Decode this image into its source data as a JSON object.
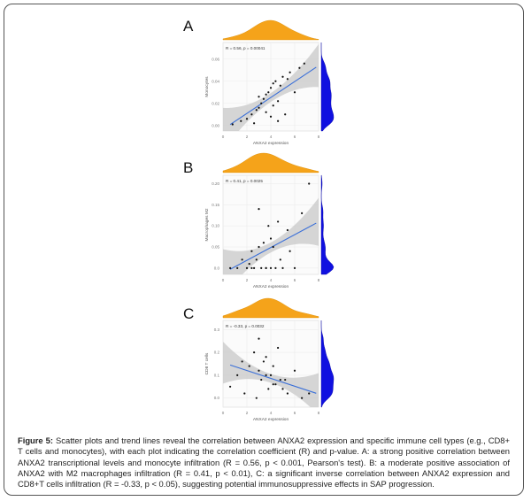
{
  "figure": {
    "label": "Figure 5:",
    "caption": "Scatter plots and trend lines reveal the correlation between ANXA2 expression and specific immune cell types (e.g., CD8+ T cells and monocytes), with each plot indicating the correlation coefficient (R) and p-value. A: a strong positive correlation between ANXA2 transcriptional levels and monocyte infiltration (R = 0.56, p < 0.001, Pearson's test). B: a moderate positive association of ANXA2 with M2 macrophages infiltration (R = 0.41, p < 0.01), C: a significant inverse correlation between ANXA2 expression and CD8+T cells infiltration (R = -0.33, p < 0.05), suggesting potential immunosuppressive effects in SAP progression."
  },
  "colors": {
    "top_density": "#f5a31a",
    "side_density": "#1010e0",
    "trend": "#3a6fd8",
    "ci_band": "#c8c8c8",
    "points": "#111111"
  },
  "chart_data": [
    {
      "type": "scatter",
      "panel_label": "A",
      "annotation": "R = 0.56, p = 0.00041",
      "xlabel": "ANXA2 expression",
      "ylabel": "Monocytes",
      "xticks": [
        "0",
        "2",
        "4",
        "6",
        "8"
      ],
      "yticks": [
        "0.00",
        "0.02",
        "0.04",
        "0.06"
      ],
      "xlim": [
        0,
        8
      ],
      "ylim": [
        -0.005,
        0.075
      ],
      "x": [
        0.8,
        1.5,
        2.0,
        2.4,
        2.8,
        3.0,
        3.2,
        3.4,
        3.6,
        3.6,
        3.8,
        4.0,
        4.0,
        4.2,
        4.2,
        4.4,
        4.6,
        4.8,
        5.0,
        5.2,
        5.4,
        5.6,
        6.0,
        6.4,
        6.8,
        3.0,
        2.6,
        4.6
      ],
      "y": [
        0.001,
        0.004,
        0.006,
        0.01,
        0.014,
        0.016,
        0.02,
        0.024,
        0.028,
        0.012,
        0.03,
        0.034,
        0.008,
        0.038,
        0.018,
        0.04,
        0.022,
        0.036,
        0.044,
        0.01,
        0.042,
        0.048,
        0.03,
        0.052,
        0.056,
        0.026,
        0.002,
        0.004
      ],
      "trend": {
        "slope": 0.0072,
        "intercept": -0.0035
      }
    },
    {
      "type": "scatter",
      "panel_label": "B",
      "annotation": "R = 0.41, p = 0.0025",
      "xlabel": "ANXA2 expression",
      "ylabel": "Macrophages M2",
      "xticks": [
        "0",
        "2",
        "4",
        "6",
        "8"
      ],
      "yticks": [
        "0.0",
        "0.05",
        "0.10",
        "0.15",
        "0.20"
      ],
      "xlim": [
        0,
        8
      ],
      "ylim": [
        -0.015,
        0.22
      ],
      "x": [
        0.6,
        1.2,
        1.6,
        2.0,
        2.2,
        2.4,
        2.6,
        2.8,
        3.0,
        3.2,
        3.4,
        3.6,
        3.8,
        4.0,
        4.2,
        4.4,
        4.6,
        4.8,
        5.0,
        5.4,
        6.0,
        6.6,
        7.2,
        3.0,
        4.0,
        5.6,
        2.4,
        3.6
      ],
      "y": [
        0.0,
        0.0,
        0.02,
        0.0,
        0.01,
        0.04,
        0.0,
        0.02,
        0.05,
        0.0,
        0.06,
        0.0,
        0.1,
        0.0,
        0.05,
        0.0,
        0.11,
        0.02,
        0.0,
        0.09,
        0.0,
        0.13,
        0.2,
        0.14,
        0.07,
        0.04,
        0.0,
        0.0
      ],
      "trend": {
        "slope": 0.0152,
        "intercept": -0.012
      }
    },
    {
      "type": "scatter",
      "panel_label": "C",
      "annotation": "R = -0.33, p = 0.0032",
      "xlabel": "ANXA2 expression",
      "ylabel": "CD8 T cells",
      "xticks": [
        "0",
        "2",
        "4",
        "6",
        "8"
      ],
      "yticks": [
        "0.0",
        "0.1",
        "0.2",
        "0.3"
      ],
      "xlim": [
        0,
        8
      ],
      "ylim": [
        -0.04,
        0.34
      ],
      "x": [
        0.6,
        1.2,
        1.8,
        2.2,
        2.6,
        3.0,
        3.2,
        3.4,
        3.6,
        3.8,
        4.0,
        4.2,
        4.4,
        4.6,
        4.8,
        5.0,
        5.4,
        6.0,
        6.6,
        7.2,
        2.8,
        3.6,
        4.2,
        5.2,
        1.6,
        3.0
      ],
      "y": [
        0.05,
        0.1,
        0.02,
        0.14,
        0.2,
        0.12,
        0.08,
        0.16,
        0.18,
        0.04,
        0.1,
        0.14,
        0.06,
        0.22,
        0.08,
        0.04,
        0.02,
        0.12,
        0.0,
        0.02,
        0.0,
        0.1,
        0.06,
        0.08,
        0.16,
        0.26
      ],
      "trend": {
        "slope": -0.0172,
        "intercept": 0.155
      }
    }
  ]
}
